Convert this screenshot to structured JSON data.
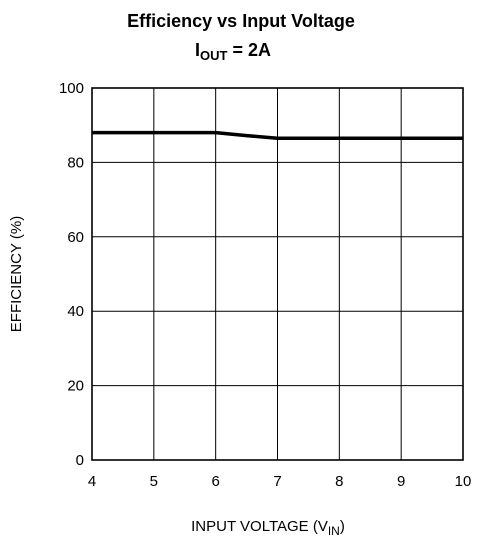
{
  "chart_data": {
    "type": "line",
    "title": "Efficiency vs Input Voltage",
    "subtitle": {
      "prefix": "I",
      "subscript": "OUT",
      "suffix": " = 2A"
    },
    "xlabel": {
      "prefix": "INPUT VOLTAGE (V",
      "subscript": "IN",
      "suffix": ")"
    },
    "ylabel": "EFFICIENCY (%)",
    "xlim": [
      4,
      10
    ],
    "ylim": [
      0,
      100
    ],
    "xticks": [
      "4",
      "5",
      "6",
      "7",
      "8",
      "9",
      "10"
    ],
    "yticks": [
      "0",
      "20",
      "40",
      "60",
      "80",
      "100"
    ],
    "grid": true,
    "series": [
      {
        "x": [
          4,
          5,
          6,
          6.5,
          7,
          8,
          9,
          10
        ],
        "y": [
          88,
          88,
          88,
          87.2,
          86.5,
          86.5,
          86.5,
          86.5
        ]
      }
    ]
  }
}
